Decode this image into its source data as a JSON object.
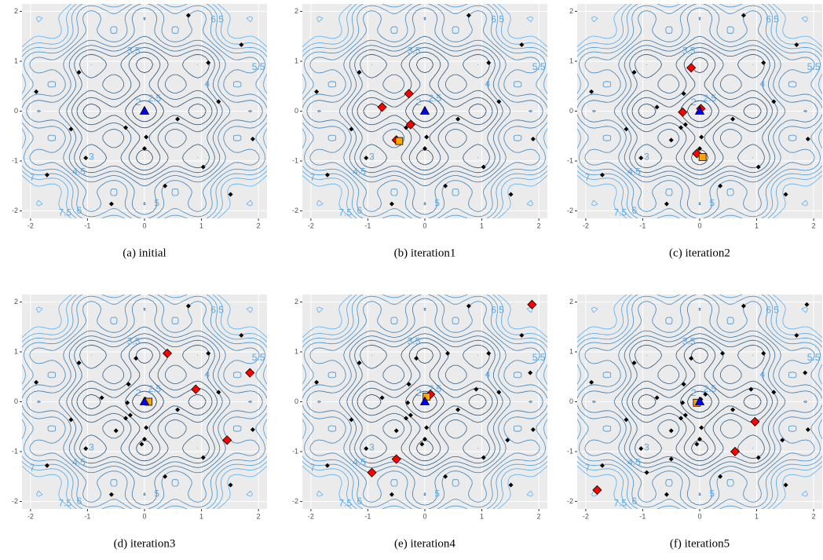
{
  "chart_data": [
    {
      "type": "contour-scatter",
      "caption": "(a)  initial",
      "xlim": [
        -2.15,
        2.15
      ],
      "ylim": [
        -2.15,
        2.15
      ],
      "xticks": [
        -2,
        -1,
        0,
        1,
        2
      ],
      "yticks": [
        -2,
        -1,
        0,
        1,
        2
      ],
      "contour_levels": [
        1.5,
        2,
        2.5,
        3,
        3.5,
        4,
        4.5,
        5,
        5.5,
        6,
        6.5,
        7,
        7.5
      ],
      "series": [
        {
          "color": "#000000",
          "marker": "diamond",
          "x": [
            0.77,
            1.7,
            -1.15,
            1.12,
            1.3,
            -1.9,
            0.58,
            -1.29,
            -0.33,
            0.0,
            1.9,
            0.03,
            -1.03,
            1.03,
            -1.71,
            0.36,
            -0.58,
            1.51
          ],
          "y": [
            1.92,
            1.33,
            0.78,
            0.97,
            0.19,
            0.39,
            -0.16,
            -0.36,
            -0.33,
            -0.75,
            -0.56,
            -0.52,
            -0.94,
            -1.12,
            -1.28,
            -1.5,
            -1.86,
            -1.67
          ]
        },
        {
          "color": "#0000ff",
          "marker": "triangle",
          "x": [
            0
          ],
          "y": [
            0
          ]
        }
      ]
    },
    {
      "type": "contour-scatter",
      "caption": "(b)  iteration1",
      "xlim": [
        -2.15,
        2.15
      ],
      "ylim": [
        -2.15,
        2.15
      ],
      "xticks": [
        -2,
        -1,
        0,
        1,
        2
      ],
      "yticks": [
        -2,
        -1,
        0,
        1,
        2
      ],
      "contour_levels": [
        1.5,
        2,
        2.5,
        3,
        3.5,
        4,
        4.5,
        5,
        5.5,
        6,
        6.5,
        7,
        7.5
      ],
      "series": [
        {
          "color": "#000000",
          "marker": "diamond",
          "x": [
            0.77,
            1.7,
            -1.15,
            1.12,
            1.3,
            -1.9,
            0.58,
            -1.29,
            -0.33,
            0.0,
            1.9,
            0.03,
            -1.03,
            1.03,
            -1.71,
            0.36,
            -0.58,
            1.51
          ],
          "y": [
            1.92,
            1.33,
            0.78,
            0.97,
            0.19,
            0.39,
            -0.16,
            -0.36,
            -0.33,
            -0.75,
            -0.56,
            -0.52,
            -0.94,
            -1.12,
            -1.28,
            -1.5,
            -1.86,
            -1.67
          ]
        },
        {
          "color": "#ff0000",
          "marker": "diamond",
          "x": [
            -0.75,
            -0.28,
            -0.25,
            -0.5
          ],
          "y": [
            0.08,
            0.35,
            -0.27,
            -0.58
          ]
        },
        {
          "color": "#ffa500",
          "marker": "square",
          "x": [
            -0.45
          ],
          "y": [
            -0.6
          ]
        },
        {
          "color": "#0000ff",
          "marker": "triangle",
          "x": [
            0
          ],
          "y": [
            0
          ]
        }
      ]
    },
    {
      "type": "contour-scatter",
      "caption": "(c)  iteration2",
      "xlim": [
        -2.15,
        2.15
      ],
      "ylim": [
        -2.15,
        2.15
      ],
      "xticks": [
        -2,
        -1,
        0,
        1,
        2
      ],
      "yticks": [
        -2,
        -1,
        0,
        1,
        2
      ],
      "contour_levels": [
        1.5,
        2,
        2.5,
        3,
        3.5,
        4,
        4.5,
        5,
        5.5,
        6,
        6.5,
        7,
        7.5
      ],
      "series": [
        {
          "color": "#000000",
          "marker": "diamond",
          "x": [
            0.77,
            1.7,
            -1.15,
            1.12,
            1.3,
            -1.9,
            0.58,
            -1.29,
            -0.33,
            0.0,
            1.9,
            0.03,
            -1.03,
            1.03,
            -1.71,
            0.36,
            -0.58,
            1.51,
            -0.75,
            -0.28,
            -0.25,
            -0.5
          ],
          "y": [
            1.92,
            1.33,
            0.78,
            0.97,
            0.19,
            0.39,
            -0.16,
            -0.36,
            -0.33,
            -0.75,
            -0.56,
            -0.52,
            -0.94,
            -1.12,
            -1.28,
            -1.5,
            -1.86,
            -1.67,
            0.08,
            0.35,
            -0.27,
            -0.58
          ]
        },
        {
          "color": "#ff0000",
          "marker": "diamond",
          "x": [
            -0.15,
            -0.3,
            0.02,
            -0.05
          ],
          "y": [
            0.87,
            -0.02,
            0.05,
            -0.85
          ]
        },
        {
          "color": "#ffa500",
          "marker": "square",
          "x": [
            0.05
          ],
          "y": [
            -0.92
          ]
        },
        {
          "color": "#0000ff",
          "marker": "triangle",
          "x": [
            0
          ],
          "y": [
            0
          ]
        }
      ]
    },
    {
      "type": "contour-scatter",
      "caption": "(d)  iteration3",
      "xlim": [
        -2.15,
        2.15
      ],
      "ylim": [
        -2.15,
        2.15
      ],
      "xticks": [
        -2,
        -1,
        0,
        1,
        2
      ],
      "yticks": [
        -2,
        -1,
        0,
        1,
        2
      ],
      "contour_levels": [
        1.5,
        2,
        2.5,
        3,
        3.5,
        4,
        4.5,
        5,
        5.5,
        6,
        6.5,
        7,
        7.5
      ],
      "series": [
        {
          "color": "#000000",
          "marker": "diamond",
          "x": [
            0.77,
            1.7,
            -1.15,
            1.12,
            1.3,
            -1.9,
            0.58,
            -1.29,
            -0.33,
            0.0,
            1.9,
            0.03,
            -1.03,
            1.03,
            -1.71,
            0.36,
            -0.58,
            1.51,
            -0.75,
            -0.28,
            -0.25,
            -0.5,
            -0.15,
            -0.3,
            0.02,
            -0.05
          ],
          "y": [
            1.92,
            1.33,
            0.78,
            0.97,
            0.19,
            0.39,
            -0.16,
            -0.36,
            -0.33,
            -0.75,
            -0.56,
            -0.52,
            -0.94,
            -1.12,
            -1.28,
            -1.5,
            -1.86,
            -1.67,
            0.08,
            0.35,
            -0.27,
            -0.58,
            0.87,
            -0.02,
            0.05,
            -0.85
          ]
        },
        {
          "color": "#ff0000",
          "marker": "diamond",
          "x": [
            0.4,
            0.9,
            1.85,
            1.45
          ],
          "y": [
            0.97,
            0.25,
            0.58,
            -0.77
          ]
        },
        {
          "color": "#ffa500",
          "marker": "square",
          "x": [
            0.07
          ],
          "y": [
            0.0
          ]
        },
        {
          "color": "#0000ff",
          "marker": "triangle",
          "x": [
            0
          ],
          "y": [
            0
          ]
        }
      ]
    },
    {
      "type": "contour-scatter",
      "caption": "(e)  iteration4",
      "xlim": [
        -2.15,
        2.15
      ],
      "ylim": [
        -2.15,
        2.15
      ],
      "xticks": [
        -2,
        -1,
        0,
        1,
        2
      ],
      "yticks": [
        -2,
        -1,
        0,
        1,
        2
      ],
      "contour_levels": [
        1.5,
        2,
        2.5,
        3,
        3.5,
        4,
        4.5,
        5,
        5.5,
        6,
        6.5,
        7,
        7.5
      ],
      "series": [
        {
          "color": "#000000",
          "marker": "diamond",
          "x": [
            0.77,
            1.7,
            -1.15,
            1.12,
            1.3,
            -1.9,
            0.58,
            -1.29,
            -0.33,
            0.0,
            1.9,
            0.03,
            -1.03,
            1.03,
            -1.71,
            0.36,
            -0.58,
            1.51,
            -0.75,
            -0.28,
            -0.25,
            -0.5,
            -0.15,
            -0.3,
            0.02,
            -0.05,
            0.4,
            0.9,
            1.85,
            1.45
          ],
          "y": [
            1.92,
            1.33,
            0.78,
            0.97,
            0.19,
            0.39,
            -0.16,
            -0.36,
            -0.33,
            -0.75,
            -0.56,
            -0.52,
            -0.94,
            -1.12,
            -1.28,
            -1.5,
            -1.86,
            -1.67,
            0.08,
            0.35,
            -0.27,
            -0.58,
            0.87,
            -0.02,
            0.05,
            -0.85,
            0.97,
            0.25,
            0.58,
            -0.77
          ]
        },
        {
          "color": "#ff0000",
          "marker": "diamond",
          "x": [
            1.88,
            0.1,
            -0.5,
            -0.93
          ],
          "y": [
            1.95,
            0.15,
            -1.15,
            -1.42
          ]
        },
        {
          "color": "#ffa500",
          "marker": "square",
          "x": [
            0.03
          ],
          "y": [
            0.1
          ]
        },
        {
          "color": "#0000ff",
          "marker": "triangle",
          "x": [
            0
          ],
          "y": [
            0
          ]
        }
      ]
    },
    {
      "type": "contour-scatter",
      "caption": "(f)  iteration5",
      "xlim": [
        -2.15,
        2.15
      ],
      "ylim": [
        -2.15,
        2.15
      ],
      "xticks": [
        -2,
        -1,
        0,
        1,
        2
      ],
      "yticks": [
        -2,
        -1,
        0,
        1,
        2
      ],
      "contour_levels": [
        1.5,
        2,
        2.5,
        3,
        3.5,
        4,
        4.5,
        5,
        5.5,
        6,
        6.5,
        7,
        7.5
      ],
      "series": [
        {
          "color": "#000000",
          "marker": "diamond",
          "x": [
            0.77,
            1.7,
            -1.15,
            1.12,
            1.3,
            -1.9,
            0.58,
            -1.29,
            -0.33,
            0.0,
            1.9,
            0.03,
            -1.03,
            1.03,
            -1.71,
            0.36,
            -0.58,
            1.51,
            -0.75,
            -0.28,
            -0.25,
            -0.5,
            -0.15,
            -0.3,
            0.02,
            -0.05,
            0.4,
            0.9,
            1.85,
            1.45,
            1.88,
            0.1,
            -0.5,
            -0.93
          ],
          "y": [
            1.92,
            1.33,
            0.78,
            0.97,
            0.19,
            0.39,
            -0.16,
            -0.36,
            -0.33,
            -0.75,
            -0.56,
            -0.52,
            -0.94,
            -1.12,
            -1.28,
            -1.5,
            -1.86,
            -1.67,
            0.08,
            0.35,
            -0.27,
            -0.58,
            0.87,
            -0.02,
            0.05,
            -0.85,
            0.97,
            0.25,
            0.58,
            -0.77,
            1.95,
            0.15,
            -1.15,
            -1.42
          ]
        },
        {
          "color": "#ff0000",
          "marker": "diamond",
          "x": [
            -1.8,
            0.62,
            0.97
          ],
          "y": [
            -1.77,
            -1.0,
            -0.4
          ]
        },
        {
          "color": "#ffa500",
          "marker": "square",
          "x": [
            -0.05
          ],
          "y": [
            -0.02
          ]
        },
        {
          "color": "#0000ff",
          "marker": "triangle",
          "x": [
            0
          ],
          "y": [
            0
          ]
        }
      ]
    }
  ]
}
